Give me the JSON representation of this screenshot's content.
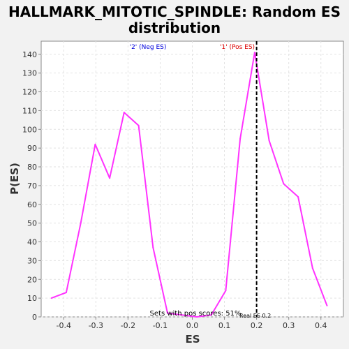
{
  "chart_data": {
    "type": "line",
    "title_line1": "HALLMARK_MITOTIC_SPINDLE: Random ES",
    "title_line2": "distribution",
    "xlabel": "ES",
    "ylabel": "P(ES)",
    "xlim": [
      -0.47,
      0.47
    ],
    "ylim": [
      0,
      147
    ],
    "xticks": [
      -0.4,
      -0.3,
      -0.2,
      -0.1,
      0.0,
      0.1,
      0.2,
      0.3,
      0.4
    ],
    "xtick_labels": [
      "-0.4",
      "-0.3",
      "-0.2",
      "-0.1",
      "0.0",
      "0.1",
      "0.2",
      "0.3",
      "0.4"
    ],
    "yticks": [
      0,
      10,
      20,
      30,
      40,
      50,
      60,
      70,
      80,
      90,
      100,
      110,
      120,
      130,
      140
    ],
    "ytick_labels": [
      "0",
      "10",
      "20",
      "30",
      "40",
      "50",
      "60",
      "70",
      "80",
      "90",
      "100",
      "110",
      "120",
      "130",
      "140"
    ],
    "grid": true,
    "series": [
      {
        "color": "#ff33ff",
        "x": [
          -0.438,
          -0.392,
          -0.347,
          -0.302,
          -0.257,
          -0.212,
          -0.167,
          -0.122,
          -0.077,
          -0.032,
          0.014,
          0.059,
          0.104,
          0.149,
          0.194,
          0.239,
          0.284,
          0.329,
          0.374,
          0.419
        ],
        "y": [
          10,
          13,
          50,
          92,
          74,
          109,
          102,
          37,
          2,
          1,
          0,
          1,
          14,
          95,
          141,
          94,
          71,
          64,
          26,
          6
        ]
      }
    ],
    "real_es": {
      "value": 0.2,
      "label": "Real ES 0.2",
      "color": "#000000"
    },
    "annotations": {
      "neg": {
        "text": "'2' (Neg ES)",
        "color": "#0000dd"
      },
      "pos": {
        "text": "'1' (Pos ES)",
        "color": "#dd0000"
      },
      "pos_scores": {
        "text": "Sets with pos scores: 51%"
      }
    }
  }
}
